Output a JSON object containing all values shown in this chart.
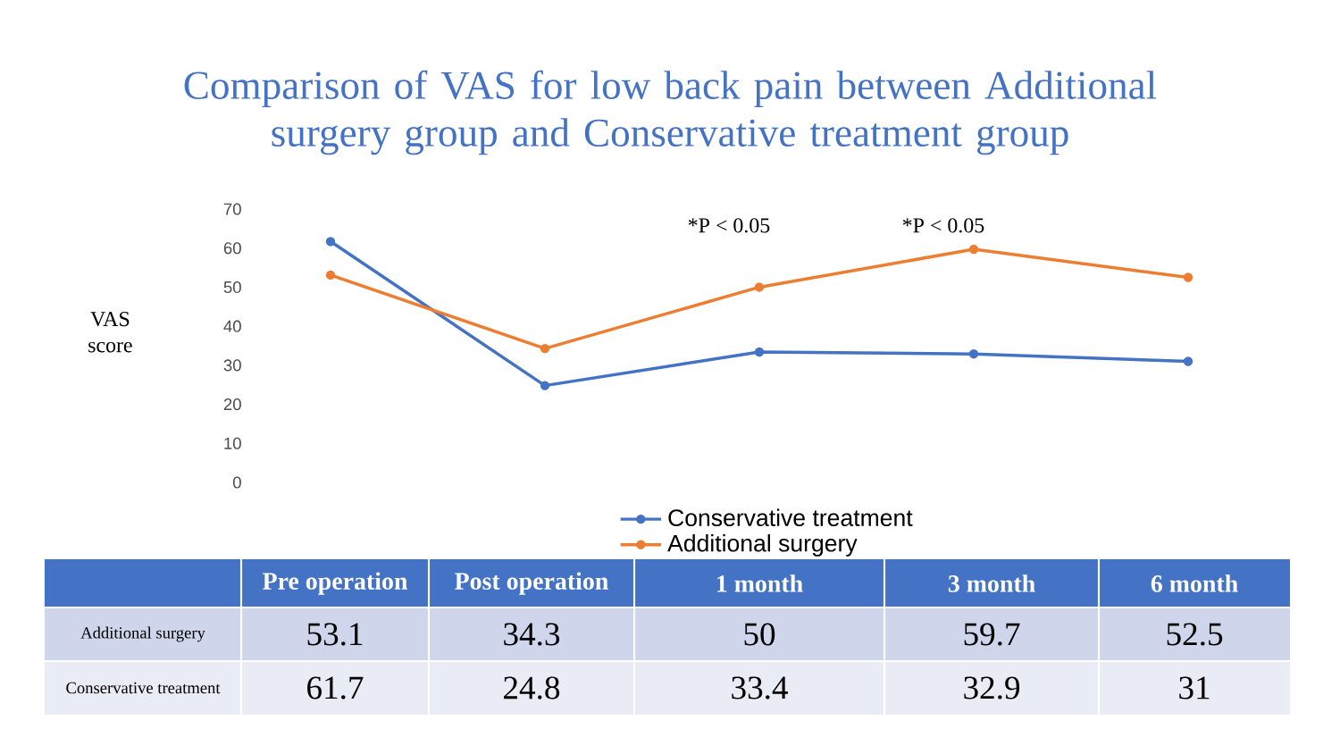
{
  "chart_data": {
    "type": "line",
    "title": "Comparison of VAS for low back pain between Additional surgery group and Conservative treatment group",
    "ylabel": "VAS score",
    "categories": [
      "Pre operation",
      "Post operation",
      "1 month",
      "3 month",
      "6 month"
    ],
    "series": [
      {
        "name": "Conservative treatment",
        "color": "#4472c4",
        "values": [
          61.7,
          24.8,
          33.4,
          32.9,
          31
        ]
      },
      {
        "name": "Additional surgery",
        "color": "#ed7d31",
        "values": [
          53.1,
          34.3,
          50,
          59.7,
          52.5
        ]
      }
    ],
    "ylim": [
      0,
      70
    ],
    "yticks": [
      0,
      10,
      20,
      30,
      40,
      50,
      60,
      70
    ],
    "annotations": [
      "*P < 0.05",
      "*P < 0.05"
    ],
    "data_labels": true,
    "legend": "bottom",
    "tick_labels": "y",
    "marker": "circle",
    "line_style": "solid",
    "grid": false
  }
}
